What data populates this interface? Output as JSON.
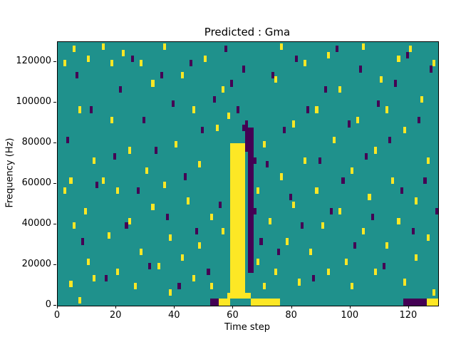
{
  "chart_data": {
    "type": "heatmap",
    "title": "Predicted : Gma",
    "xlabel": "Time step",
    "ylabel": "Frequency (Hz)",
    "xlim": [
      0,
      130
    ],
    "ylim": [
      0,
      130000
    ],
    "xticks": [
      0,
      20,
      40,
      60,
      80,
      100,
      120
    ],
    "yticks": [
      0,
      20000,
      40000,
      60000,
      80000,
      100000,
      120000
    ],
    "grid": {
      "cols": 130,
      "rows": 40,
      "cell_x": 1,
      "cell_y": 3250
    },
    "colors": {
      "background": "#1f918c",
      "high": "#fde725",
      "low": "#440154"
    },
    "legend": "none",
    "regions": [
      {
        "color": "high",
        "x0": 59,
        "x1": 64,
        "y0": 6000,
        "y1": 80000
      },
      {
        "color": "high",
        "x0": 58,
        "x1": 66,
        "y0": 3500,
        "y1": 6500
      },
      {
        "color": "low",
        "x0": 65,
        "x1": 67,
        "y0": 16000,
        "y1": 88000
      },
      {
        "color": "low",
        "x0": 64,
        "x1": 65,
        "y0": 76000,
        "y1": 90000
      },
      {
        "color": "high",
        "x0": 55,
        "x1": 59,
        "y0": 0,
        "y1": 3500
      },
      {
        "color": "high",
        "x0": 66,
        "x1": 76,
        "y0": 0,
        "y1": 3500
      },
      {
        "color": "low",
        "x0": 52,
        "x1": 55,
        "y0": 0,
        "y1": 3500
      },
      {
        "color": "low",
        "x0": 118,
        "x1": 126,
        "y0": 0,
        "y1": 3500
      },
      {
        "color": "high",
        "x0": 126,
        "x1": 130,
        "y0": 0,
        "y1": 3500
      }
    ],
    "cells": {
      "high": [
        [
          2,
          55000
        ],
        [
          2,
          118000
        ],
        [
          4,
          9000
        ],
        [
          4,
          60000
        ],
        [
          5,
          125000
        ],
        [
          5,
          38000
        ],
        [
          7,
          1000
        ],
        [
          7,
          95000
        ],
        [
          9,
          45000
        ],
        [
          10,
          20000
        ],
        [
          10,
          120000
        ],
        [
          12,
          70000
        ],
        [
          12,
          12000
        ],
        [
          15,
          126000
        ],
        [
          15,
          60000
        ],
        [
          17,
          33000
        ],
        [
          18,
          90000
        ],
        [
          18,
          118000
        ],
        [
          20,
          15000
        ],
        [
          20,
          55000
        ],
        [
          22,
          123000
        ],
        [
          24,
          40000
        ],
        [
          24,
          75000
        ],
        [
          26,
          8000
        ],
        [
          28,
          118000
        ],
        [
          28,
          25000
        ],
        [
          30,
          65000
        ],
        [
          32,
          47000
        ],
        [
          32,
          108000
        ],
        [
          34,
          18000
        ],
        [
          36,
          126000
        ],
        [
          36,
          58000
        ],
        [
          38,
          32000
        ],
        [
          38,
          5000
        ],
        [
          40,
          78000
        ],
        [
          42,
          22000
        ],
        [
          42,
          112000
        ],
        [
          44,
          50000
        ],
        [
          46,
          95000
        ],
        [
          46,
          12000
        ],
        [
          48,
          28000
        ],
        [
          48,
          68000
        ],
        [
          50,
          120000
        ],
        [
          52,
          42000
        ],
        [
          52,
          8000
        ],
        [
          54,
          86000
        ],
        [
          56,
          105000
        ],
        [
          56,
          35000
        ],
        [
          58,
          92000
        ],
        [
          68,
          55000
        ],
        [
          68,
          20000
        ],
        [
          70,
          78000
        ],
        [
          70,
          8000
        ],
        [
          72,
          40000
        ],
        [
          74,
          110000
        ],
        [
          74,
          15000
        ],
        [
          76,
          126000
        ],
        [
          76,
          62000
        ],
        [
          78,
          30000
        ],
        [
          80,
          88000
        ],
        [
          80,
          48000
        ],
        [
          82,
          10000
        ],
        [
          84,
          70000
        ],
        [
          84,
          118000
        ],
        [
          86,
          25000
        ],
        [
          88,
          55000
        ],
        [
          88,
          95000
        ],
        [
          90,
          38000
        ],
        [
          92,
          122000
        ],
        [
          92,
          15000
        ],
        [
          94,
          80000
        ],
        [
          96,
          45000
        ],
        [
          96,
          105000
        ],
        [
          98,
          20000
        ],
        [
          100,
          65000
        ],
        [
          100,
          8000
        ],
        [
          102,
          90000
        ],
        [
          104,
          126000
        ],
        [
          104,
          35000
        ],
        [
          106,
          52000
        ],
        [
          108,
          15000
        ],
        [
          108,
          75000
        ],
        [
          110,
          110000
        ],
        [
          112,
          28000
        ],
        [
          112,
          95000
        ],
        [
          114,
          60000
        ],
        [
          116,
          120000
        ],
        [
          116,
          40000
        ],
        [
          118,
          10000
        ],
        [
          118,
          85000
        ],
        [
          120,
          125000
        ],
        [
          122,
          50000
        ],
        [
          122,
          22000
        ],
        [
          124,
          100000
        ],
        [
          126,
          70000
        ],
        [
          126,
          32000
        ],
        [
          128,
          118000
        ],
        [
          128,
          5000
        ]
      ],
      "low": [
        [
          3,
          80000
        ],
        [
          6,
          112000
        ],
        [
          8,
          30000
        ],
        [
          11,
          95000
        ],
        [
          13,
          58000
        ],
        [
          16,
          12000
        ],
        [
          19,
          72000
        ],
        [
          21,
          105000
        ],
        [
          23,
          38000
        ],
        [
          25,
          120000
        ],
        [
          27,
          55000
        ],
        [
          29,
          90000
        ],
        [
          31,
          18000
        ],
        [
          33,
          75000
        ],
        [
          35,
          112000
        ],
        [
          37,
          42000
        ],
        [
          39,
          98000
        ],
        [
          41,
          8000
        ],
        [
          43,
          62000
        ],
        [
          45,
          118000
        ],
        [
          47,
          35000
        ],
        [
          49,
          85000
        ],
        [
          51,
          15000
        ],
        [
          53,
          100000
        ],
        [
          55,
          48000
        ],
        [
          57,
          125000
        ],
        [
          59,
          108000
        ],
        [
          61,
          95000
        ],
        [
          63,
          115000
        ],
        [
          63,
          86000
        ],
        [
          64,
          88000
        ],
        [
          66,
          35000
        ],
        [
          66,
          50000
        ],
        [
          66,
          65000
        ],
        [
          67,
          45000
        ],
        [
          67,
          70000
        ],
        [
          69,
          30000
        ],
        [
          71,
          68000
        ],
        [
          73,
          112000
        ],
        [
          75,
          25000
        ],
        [
          77,
          85000
        ],
        [
          79,
          52000
        ],
        [
          81,
          120000
        ],
        [
          83,
          38000
        ],
        [
          85,
          95000
        ],
        [
          87,
          12000
        ],
        [
          89,
          70000
        ],
        [
          91,
          105000
        ],
        [
          93,
          45000
        ],
        [
          95,
          125000
        ],
        [
          97,
          60000
        ],
        [
          99,
          88000
        ],
        [
          101,
          28000
        ],
        [
          103,
          115000
        ],
        [
          105,
          72000
        ],
        [
          107,
          42000
        ],
        [
          109,
          98000
        ],
        [
          111,
          18000
        ],
        [
          113,
          80000
        ],
        [
          115,
          108000
        ],
        [
          117,
          55000
        ],
        [
          119,
          122000
        ],
        [
          121,
          35000
        ],
        [
          123,
          90000
        ],
        [
          125,
          60000
        ],
        [
          127,
          115000
        ],
        [
          129,
          45000
        ]
      ]
    }
  }
}
